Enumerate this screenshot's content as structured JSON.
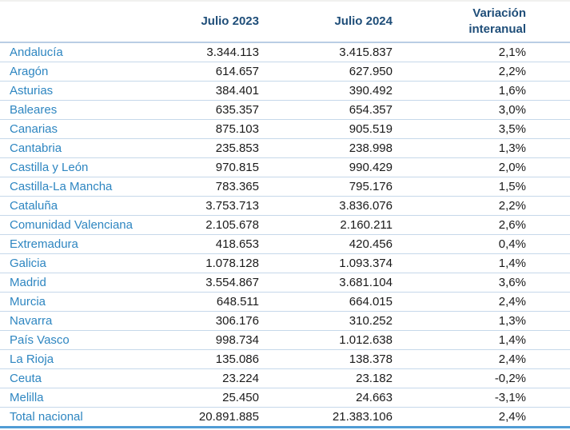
{
  "chart_data": {
    "type": "table",
    "columns": [
      "",
      "Julio 2023",
      "Julio 2024",
      "Variación interanual"
    ],
    "rows": [
      [
        "Andalucía",
        "3.344.113",
        "3.415.837",
        "2,1%"
      ],
      [
        "Aragón",
        "614.657",
        "627.950",
        "2,2%"
      ],
      [
        "Asturias",
        "384.401",
        "390.492",
        "1,6%"
      ],
      [
        "Baleares",
        "635.357",
        "654.357",
        "3,0%"
      ],
      [
        "Canarias",
        "875.103",
        "905.519",
        "3,5%"
      ],
      [
        "Cantabria",
        "235.853",
        "238.998",
        "1,3%"
      ],
      [
        "Castilla y León",
        "970.815",
        "990.429",
        "2,0%"
      ],
      [
        "Castilla-La Mancha",
        "783.365",
        "795.176",
        "1,5%"
      ],
      [
        "Cataluña",
        "3.753.713",
        "3.836.076",
        "2,2%"
      ],
      [
        "Comunidad Valenciana",
        "2.105.678",
        "2.160.211",
        "2,6%"
      ],
      [
        "Extremadura",
        "418.653",
        "420.456",
        "0,4%"
      ],
      [
        "Galicia",
        "1.078.128",
        "1.093.374",
        "1,4%"
      ],
      [
        "Madrid",
        "3.554.867",
        "3.681.104",
        "3,6%"
      ],
      [
        "Murcia",
        "648.511",
        "664.015",
        "2,4%"
      ],
      [
        "Navarra",
        "306.176",
        "310.252",
        "1,3%"
      ],
      [
        "País Vasco",
        "998.734",
        "1.012.638",
        "1,4%"
      ],
      [
        "La Rioja",
        "135.086",
        "138.378",
        "2,4%"
      ],
      [
        "Ceuta",
        "23.224",
        "23.182",
        "-0,2%"
      ],
      [
        "Melilla",
        "25.450",
        "24.663",
        "-3,1%"
      ],
      [
        "Total nacional",
        "20.891.885",
        "21.383.106",
        "2,4%"
      ]
    ],
    "total_row_label": "Total nacional",
    "layout": {
      "header_lines_last_column": 2,
      "number_alignment": "right",
      "grid": "horizontal-only"
    }
  },
  "colors": {
    "region_text": "#2e86c1",
    "header_text": "#1f4e79",
    "number_text": "#1a1a1a",
    "row_divider": "#c6d8ea",
    "header_divider": "#b9cde4",
    "bottom_border": "#509cd5"
  }
}
